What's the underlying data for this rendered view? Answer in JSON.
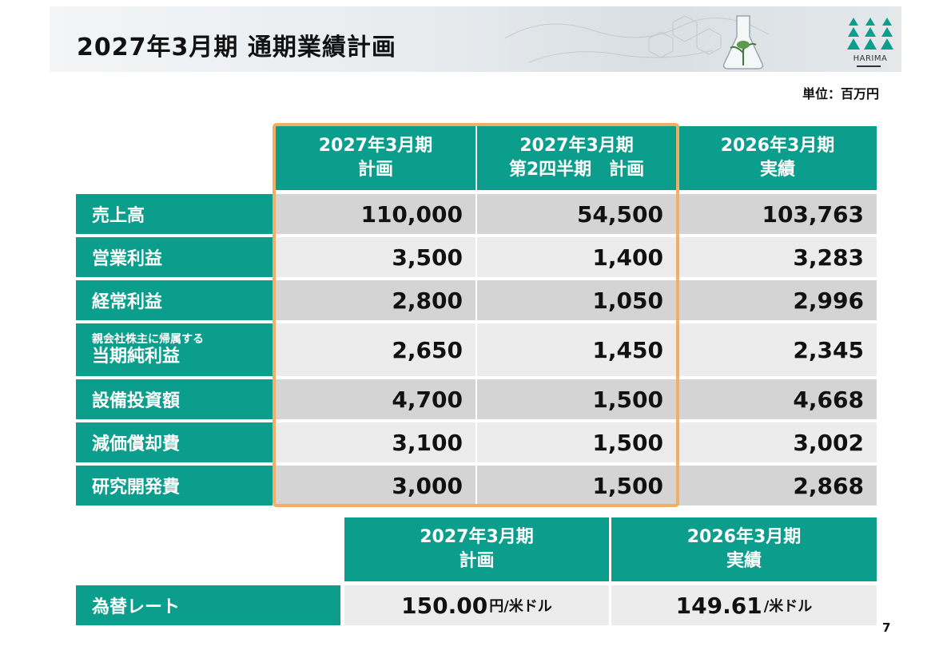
{
  "header": {
    "title": "2027年3月期 通期業績計画",
    "logo_text": "HARIMA"
  },
  "unit_label": "単位：百万円",
  "table": {
    "columns": [
      {
        "line1": "2027年3月期",
        "line2": "計画"
      },
      {
        "line1": "2027年3月期",
        "line2": "第2四半期　計画"
      },
      {
        "line1": "2026年3月期",
        "line2": "実績"
      }
    ],
    "rows": [
      {
        "label": "売上高",
        "values": [
          "110,000",
          "54,500",
          "103,763"
        ]
      },
      {
        "label": "営業利益",
        "values": [
          "3,500",
          "1,400",
          "3,283"
        ]
      },
      {
        "label": "経常利益",
        "values": [
          "2,800",
          "1,050",
          "2,996"
        ]
      },
      {
        "label_small": "親会社株主に帰属する",
        "label": "当期純利益",
        "values": [
          "2,650",
          "1,450",
          "2,345"
        ]
      },
      {
        "label": "設備投資額",
        "values": [
          "4,700",
          "1,500",
          "4,668"
        ]
      },
      {
        "label": "減価償却費",
        "values": [
          "3,100",
          "1,500",
          "3,002"
        ]
      },
      {
        "label": "研究開発費",
        "values": [
          "3,000",
          "1,500",
          "2,868"
        ]
      }
    ]
  },
  "fx_table": {
    "columns": [
      {
        "line1": "2027年3月期",
        "line2": "計画"
      },
      {
        "line1": "2026年3月期",
        "line2": "実績"
      }
    ],
    "row_label": "為替レート",
    "values": [
      {
        "num": "150.00",
        "unit": "円/米ドル"
      },
      {
        "num": "149.61",
        "unit": "/米ドル"
      }
    ]
  },
  "page_number": "7",
  "colors": {
    "header_green": "#0c9e8c",
    "highlight_orange": "#f0ae66"
  }
}
